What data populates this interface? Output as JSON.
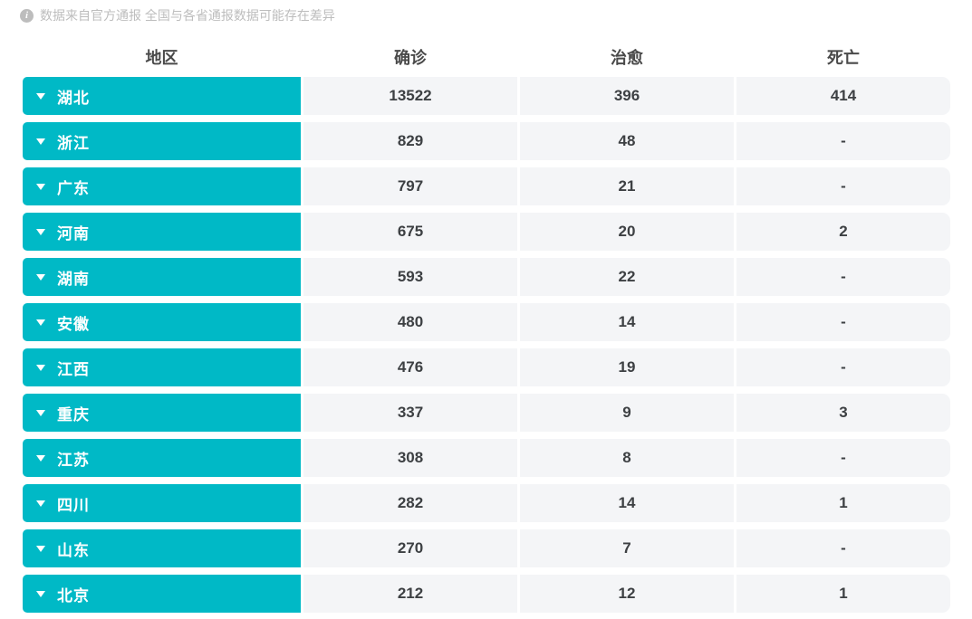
{
  "note": {
    "icon": "info-icon",
    "text": "数据来自官方通报 全国与各省通报数据可能存在差异"
  },
  "colors": {
    "accent": "#00b9c6",
    "cell_bg": "#f4f5f7"
  },
  "table": {
    "headers": [
      "地区",
      "确诊",
      "治愈",
      "死亡"
    ],
    "rows": [
      {
        "region": "湖北",
        "confirmed": "13522",
        "cured": "396",
        "deaths": "414"
      },
      {
        "region": "浙江",
        "confirmed": "829",
        "cured": "48",
        "deaths": "-"
      },
      {
        "region": "广东",
        "confirmed": "797",
        "cured": "21",
        "deaths": "-"
      },
      {
        "region": "河南",
        "confirmed": "675",
        "cured": "20",
        "deaths": "2"
      },
      {
        "region": "湖南",
        "confirmed": "593",
        "cured": "22",
        "deaths": "-"
      },
      {
        "region": "安徽",
        "confirmed": "480",
        "cured": "14",
        "deaths": "-"
      },
      {
        "region": "江西",
        "confirmed": "476",
        "cured": "19",
        "deaths": "-"
      },
      {
        "region": "重庆",
        "confirmed": "337",
        "cured": "9",
        "deaths": "3"
      },
      {
        "region": "江苏",
        "confirmed": "308",
        "cured": "8",
        "deaths": "-"
      },
      {
        "region": "四川",
        "confirmed": "282",
        "cured": "14",
        "deaths": "1"
      },
      {
        "region": "山东",
        "confirmed": "270",
        "cured": "7",
        "deaths": "-"
      },
      {
        "region": "北京",
        "confirmed": "212",
        "cured": "12",
        "deaths": "1"
      }
    ]
  }
}
